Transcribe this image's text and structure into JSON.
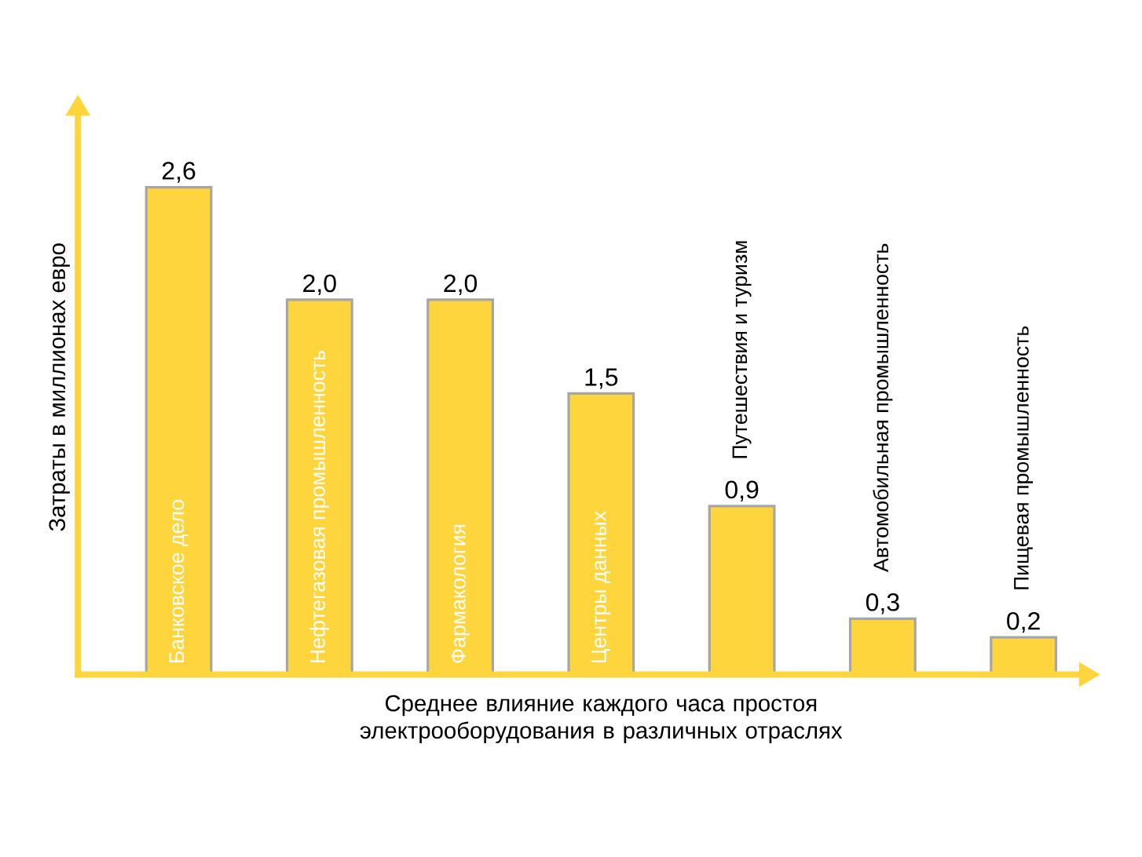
{
  "chart_data": {
    "type": "bar",
    "categories": [
      "Банковское дело",
      "Нефтегазовая промышленность",
      "Фармакология",
      "Центры данных",
      "Путешествия и туризм",
      "Автомобильная промышленность",
      "Пищевая промышленность"
    ],
    "values": [
      2.6,
      2.0,
      2.0,
      1.5,
      0.9,
      0.3,
      0.2
    ],
    "value_labels": [
      "2,6",
      "2,0",
      "2,0",
      "1,5",
      "0,9",
      "0,3",
      "0,2"
    ],
    "color": "#fed53c",
    "xlabel": "Среднее влияние каждого часа простоя электрооборудования в различных отраслях",
    "ylabel": "Затраты в миллионах евро"
  }
}
